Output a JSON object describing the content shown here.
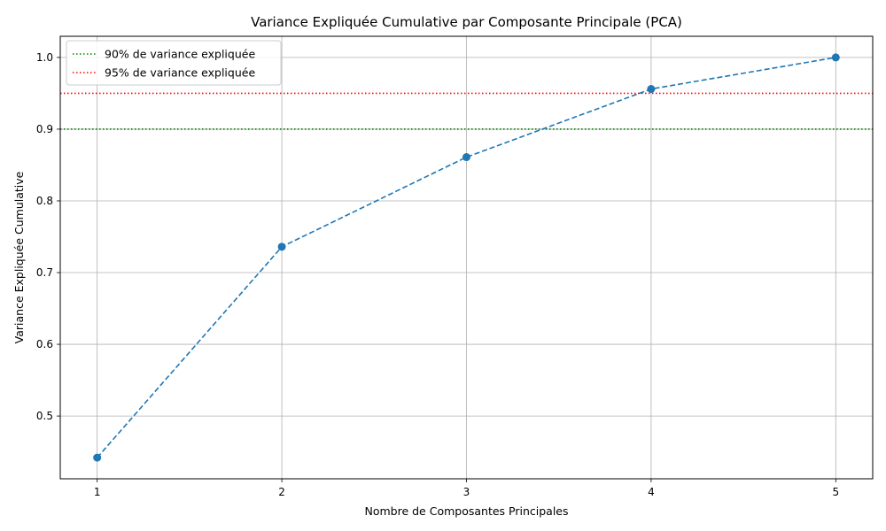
{
  "chart_data": {
    "type": "line",
    "title": "Variance Expliquée Cumulative par Composante Principale (PCA)",
    "xlabel": "Nombre de Composantes Principales",
    "ylabel": "Variance Expliquée Cumulative",
    "x": [
      1,
      2,
      3,
      4,
      5
    ],
    "xticks": [
      "1",
      "2",
      "3",
      "4",
      "5"
    ],
    "xlim": [
      0.8,
      5.2
    ],
    "ylim": [
      0.4125,
      1.0295
    ],
    "yticks": [
      "0.5",
      "0.6",
      "0.7",
      "0.8",
      "0.9",
      "1.0"
    ],
    "grid": true,
    "legend_position": "top-left",
    "series": [
      {
        "values": [
          0.442,
          0.736,
          0.861,
          0.956,
          1.0
        ],
        "color": "#1f77b4",
        "line_style": "dashed",
        "marker": "circle"
      }
    ],
    "reference_lines": [
      {
        "name": "90% de variance expliquée",
        "y": 0.9,
        "color": "#008000",
        "line_style": "dotted"
      },
      {
        "name": "95% de variance expliquée",
        "y": 0.95,
        "color": "#ff0000",
        "line_style": "dotted"
      }
    ]
  }
}
